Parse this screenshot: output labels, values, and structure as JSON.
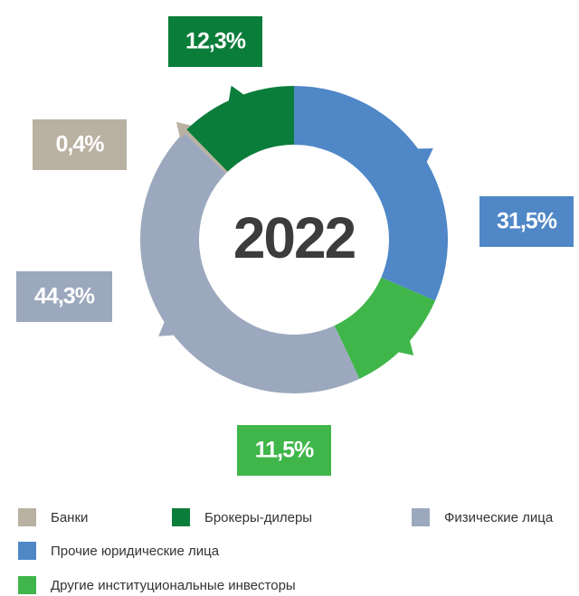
{
  "chart_data": {
    "type": "pie",
    "center_label": "2022",
    "categories": [
      "Банки",
      "Брокеры-дилеры",
      "Физические лица",
      "Прочие юридические лица",
      "Другие институциональные инвесторы"
    ],
    "values": [
      0.4,
      12.3,
      44.3,
      31.5,
      11.5
    ],
    "value_labels": [
      "0,4%",
      "12,3%",
      "44,3%",
      "31,5%",
      "11,5%"
    ],
    "colors": [
      "#b9b1a1",
      "#0b7d3a",
      "#9ba8bd",
      "#4f87c7",
      "#40b64a"
    ],
    "legend": true
  }
}
